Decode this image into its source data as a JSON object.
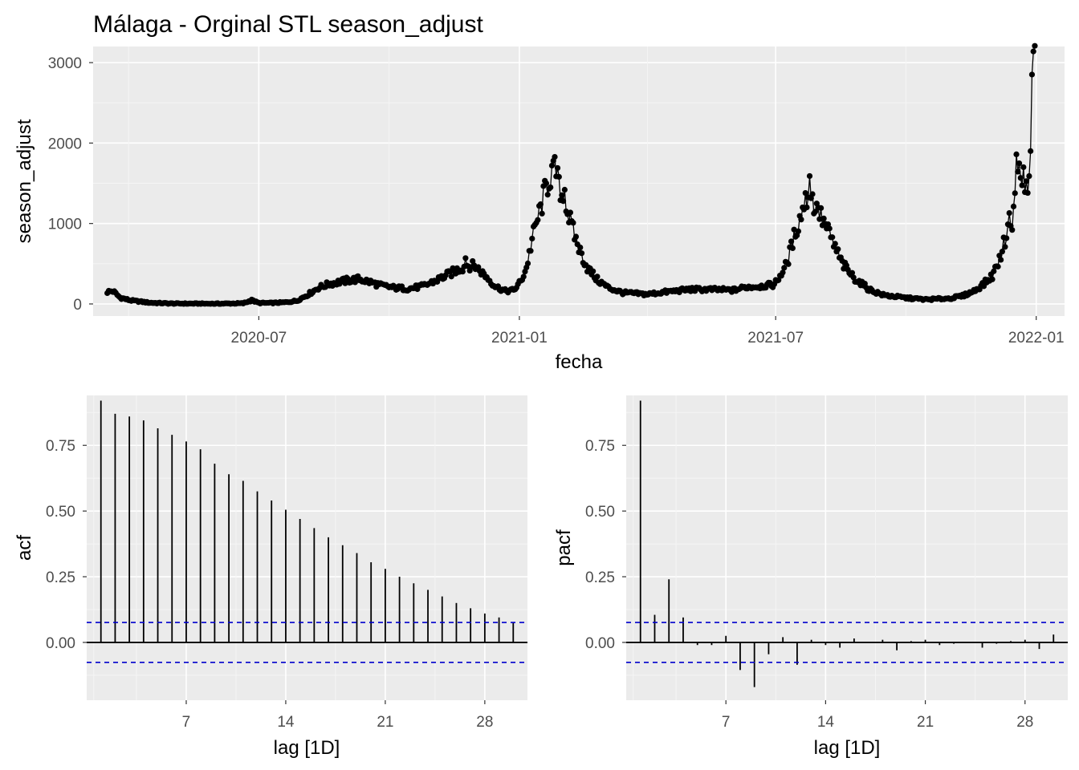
{
  "colors": {
    "panel_bg": "#EBEBEB",
    "grid_major": "#FFFFFF",
    "grid_minor": "#F5F5F5",
    "series": "#000000",
    "ci_line": "#0000CC",
    "tick_text": "#4D4D4D"
  },
  "chart_data": [
    {
      "type": "line",
      "title": "Málaga - Orginal STL season_adjust",
      "xlabel": "fecha",
      "ylabel": "season_adjust",
      "markers": true,
      "grid": true,
      "x_ticks": [
        "2020-07",
        "2021-01",
        "2021-07",
        "2022-01"
      ],
      "y_ticks": [
        "0",
        "1000",
        "2000",
        "3000"
      ],
      "xlim": [
        "2020-03-06",
        "2022-01-21"
      ],
      "ylim": [
        -150,
        3200
      ],
      "x_start": "2020-03-16",
      "x_end": "2021-12-31",
      "anchors": [
        [
          "2020-03-16",
          150
        ],
        [
          "2020-03-20",
          160
        ],
        [
          "2020-03-25",
          80
        ],
        [
          "2020-04-01",
          45
        ],
        [
          "2020-04-15",
          15
        ],
        [
          "2020-05-01",
          5
        ],
        [
          "2020-06-01",
          3
        ],
        [
          "2020-06-20",
          8
        ],
        [
          "2020-06-26",
          45
        ],
        [
          "2020-07-01",
          12
        ],
        [
          "2020-07-10",
          12
        ],
        [
          "2020-07-20",
          20
        ],
        [
          "2020-07-28",
          40
        ],
        [
          "2020-08-05",
          120
        ],
        [
          "2020-08-12",
          200
        ],
        [
          "2020-08-20",
          250
        ],
        [
          "2020-09-01",
          290
        ],
        [
          "2020-09-10",
          310
        ],
        [
          "2020-09-18",
          270
        ],
        [
          "2020-09-25",
          230
        ],
        [
          "2020-10-05",
          200
        ],
        [
          "2020-10-15",
          190
        ],
        [
          "2020-10-25",
          220
        ],
        [
          "2020-11-03",
          290
        ],
        [
          "2020-11-10",
          350
        ],
        [
          "2020-11-18",
          420
        ],
        [
          "2020-11-25",
          480
        ],
        [
          "2020-12-01",
          470
        ],
        [
          "2020-12-08",
          350
        ],
        [
          "2020-12-15",
          220
        ],
        [
          "2020-12-22",
          160
        ],
        [
          "2020-12-28",
          170
        ],
        [
          "2021-01-02",
          280
        ],
        [
          "2021-01-06",
          450
        ],
        [
          "2021-01-10",
          800
        ],
        [
          "2021-01-13",
          1000
        ],
        [
          "2021-01-17",
          1250
        ],
        [
          "2021-01-20",
          1450
        ],
        [
          "2021-01-24",
          1650
        ],
        [
          "2021-01-27",
          1650
        ],
        [
          "2021-01-31",
          1350
        ],
        [
          "2021-02-04",
          1150
        ],
        [
          "2021-02-08",
          900
        ],
        [
          "2021-02-13",
          650
        ],
        [
          "2021-02-18",
          450
        ],
        [
          "2021-02-25",
          300
        ],
        [
          "2021-03-05",
          200
        ],
        [
          "2021-03-15",
          140
        ],
        [
          "2021-04-01",
          120
        ],
        [
          "2021-04-15",
          150
        ],
        [
          "2021-05-01",
          180
        ],
        [
          "2021-05-15",
          180
        ],
        [
          "2021-06-01",
          170
        ],
        [
          "2021-06-10",
          210
        ],
        [
          "2021-06-20",
          220
        ],
        [
          "2021-06-30",
          240
        ],
        [
          "2021-07-05",
          380
        ],
        [
          "2021-07-09",
          500
        ],
        [
          "2021-07-12",
          700
        ],
        [
          "2021-07-15",
          900
        ],
        [
          "2021-07-18",
          1050
        ],
        [
          "2021-07-21",
          1250
        ],
        [
          "2021-07-24",
          1350
        ],
        [
          "2021-07-27",
          1300
        ],
        [
          "2021-07-30",
          1150
        ],
        [
          "2021-08-03",
          1050
        ],
        [
          "2021-08-07",
          900
        ],
        [
          "2021-08-12",
          700
        ],
        [
          "2021-08-17",
          500
        ],
        [
          "2021-08-25",
          330
        ],
        [
          "2021-09-05",
          180
        ],
        [
          "2021-09-15",
          110
        ],
        [
          "2021-10-01",
          75
        ],
        [
          "2021-10-15",
          55
        ],
        [
          "2021-11-01",
          70
        ],
        [
          "2021-11-10",
          100
        ],
        [
          "2021-11-18",
          160
        ],
        [
          "2021-11-25",
          250
        ],
        [
          "2021-12-01",
          350
        ],
        [
          "2021-12-06",
          550
        ],
        [
          "2021-12-10",
          800
        ],
        [
          "2021-12-14",
          1100
        ],
        [
          "2021-12-17",
          1500
        ],
        [
          "2021-12-19",
          1650
        ],
        [
          "2021-12-22",
          1550
        ],
        [
          "2021-12-25",
          1600
        ],
        [
          "2021-12-27",
          1600
        ],
        [
          "2021-12-29",
          2700
        ],
        [
          "2021-12-31",
          3050
        ]
      ],
      "spikes": [
        [
          "2021-01-25",
          1780
        ],
        [
          "2021-01-24",
          1720
        ],
        [
          "2021-01-29",
          1580
        ],
        [
          "2021-02-02",
          1420
        ],
        [
          "2021-07-25",
          1590
        ],
        [
          "2021-07-22",
          1380
        ],
        [
          "2021-07-31",
          1200
        ],
        [
          "2020-11-24",
          570
        ],
        [
          "2020-06-26",
          55
        ],
        [
          "2021-12-18",
          1860
        ],
        [
          "2021-12-23",
          1700
        ],
        [
          "2021-12-26",
          1380
        ],
        [
          "2021-12-24",
          1390
        ],
        [
          "2021-12-15",
          920
        ],
        [
          "2021-12-12",
          990
        ]
      ]
    },
    {
      "type": "bar",
      "xlabel": "lag [1D]",
      "ylabel": "acf",
      "grid": true,
      "x_ticks": [
        "7",
        "14",
        "21",
        "28"
      ],
      "y_ticks": [
        "0.00",
        "0.25",
        "0.50",
        "0.75"
      ],
      "xlim": [
        0.0,
        31.0
      ],
      "ylim": [
        -0.22,
        0.94
      ],
      "ci": 0.076,
      "lags": [
        1,
        2,
        3,
        4,
        5,
        6,
        7,
        8,
        9,
        10,
        11,
        12,
        13,
        14,
        15,
        16,
        17,
        18,
        19,
        20,
        21,
        22,
        23,
        24,
        25,
        26,
        27,
        28,
        29,
        30
      ],
      "values": [
        0.92,
        0.87,
        0.86,
        0.845,
        0.815,
        0.79,
        0.765,
        0.735,
        0.68,
        0.64,
        0.615,
        0.575,
        0.54,
        0.505,
        0.47,
        0.435,
        0.4,
        0.37,
        0.34,
        0.305,
        0.28,
        0.25,
        0.225,
        0.2,
        0.175,
        0.15,
        0.13,
        0.11,
        0.095,
        0.075
      ]
    },
    {
      "type": "bar",
      "xlabel": "lag [1D]",
      "ylabel": "pacf",
      "grid": true,
      "x_ticks": [
        "7",
        "14",
        "21",
        "28"
      ],
      "y_ticks": [
        "0.00",
        "0.25",
        "0.50",
        "0.75"
      ],
      "xlim": [
        0.0,
        31.0
      ],
      "ylim": [
        -0.22,
        0.94
      ],
      "ci": 0.076,
      "lags": [
        1,
        2,
        3,
        4,
        5,
        6,
        7,
        8,
        9,
        10,
        11,
        12,
        13,
        14,
        15,
        16,
        17,
        18,
        19,
        20,
        21,
        22,
        23,
        24,
        25,
        26,
        27,
        28,
        29,
        30
      ],
      "values": [
        0.92,
        0.105,
        0.24,
        0.095,
        -0.01,
        -0.01,
        0.025,
        -0.105,
        -0.17,
        -0.045,
        0.02,
        -0.085,
        0.01,
        -0.01,
        -0.02,
        0.015,
        0.0,
        0.01,
        -0.03,
        0.005,
        0.01,
        -0.01,
        -0.005,
        0.0,
        -0.02,
        -0.005,
        0.005,
        0.01,
        -0.025,
        0.03
      ]
    }
  ]
}
